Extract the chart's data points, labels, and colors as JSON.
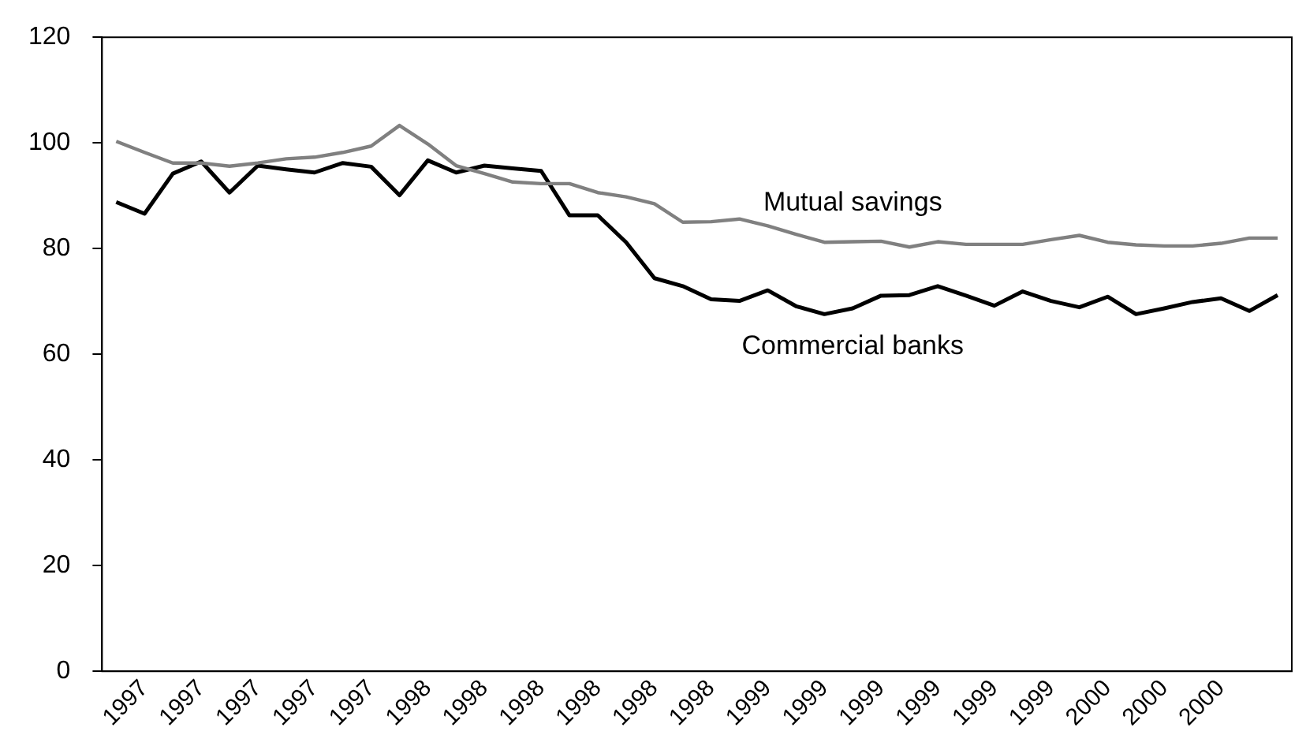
{
  "chart_data": {
    "type": "line",
    "categories": [
      null,
      "1997",
      null,
      "1997",
      null,
      "1997",
      null,
      "1997",
      null,
      "1997",
      null,
      "1998",
      null,
      "1998",
      null,
      "1998",
      null,
      "1998",
      null,
      "1998",
      null,
      "1998",
      null,
      "1999",
      null,
      "1999",
      null,
      "1999",
      null,
      "1999",
      null,
      "1999",
      null,
      "1999",
      null,
      "2000",
      null,
      "2000",
      null,
      "2000",
      null,
      null
    ],
    "series": [
      {
        "name": "Mutual savings",
        "color": "#808080",
        "values": [
          100.3,
          98.2,
          96.2,
          96.2,
          95.6,
          96.2,
          97.0,
          97.3,
          98.2,
          99.4,
          103.3,
          99.8,
          95.7,
          94.2,
          92.6,
          92.3,
          92.3,
          90.6,
          89.8,
          88.5,
          85.0,
          85.1,
          85.6,
          84.3,
          82.7,
          81.2,
          81.3,
          81.4,
          80.3,
          81.3,
          80.8,
          80.8,
          80.8,
          81.7,
          82.5,
          81.2,
          80.7,
          80.5,
          80.5,
          81.0,
          82.0,
          82.0
        ]
      },
      {
        "name": "Commercial banks",
        "color": "#000000",
        "values": [
          88.8,
          86.6,
          94.2,
          96.5,
          90.6,
          95.7,
          95.0,
          94.4,
          96.2,
          95.5,
          90.1,
          96.7,
          94.4,
          95.7,
          95.2,
          94.7,
          86.3,
          86.3,
          81.2,
          74.4,
          72.9,
          70.4,
          70.1,
          72.1,
          69.1,
          67.6,
          68.7,
          71.1,
          71.2,
          72.9,
          71.1,
          69.2,
          71.9,
          70.1,
          68.9,
          70.9,
          67.6,
          68.7,
          69.9,
          70.6,
          68.2,
          71.2
        ]
      }
    ],
    "ylim": [
      0,
      120
    ],
    "yticks": [
      0,
      20,
      40,
      60,
      80,
      100,
      120
    ],
    "grid": false,
    "legend": false,
    "marker": "none",
    "line_style": "solid"
  }
}
